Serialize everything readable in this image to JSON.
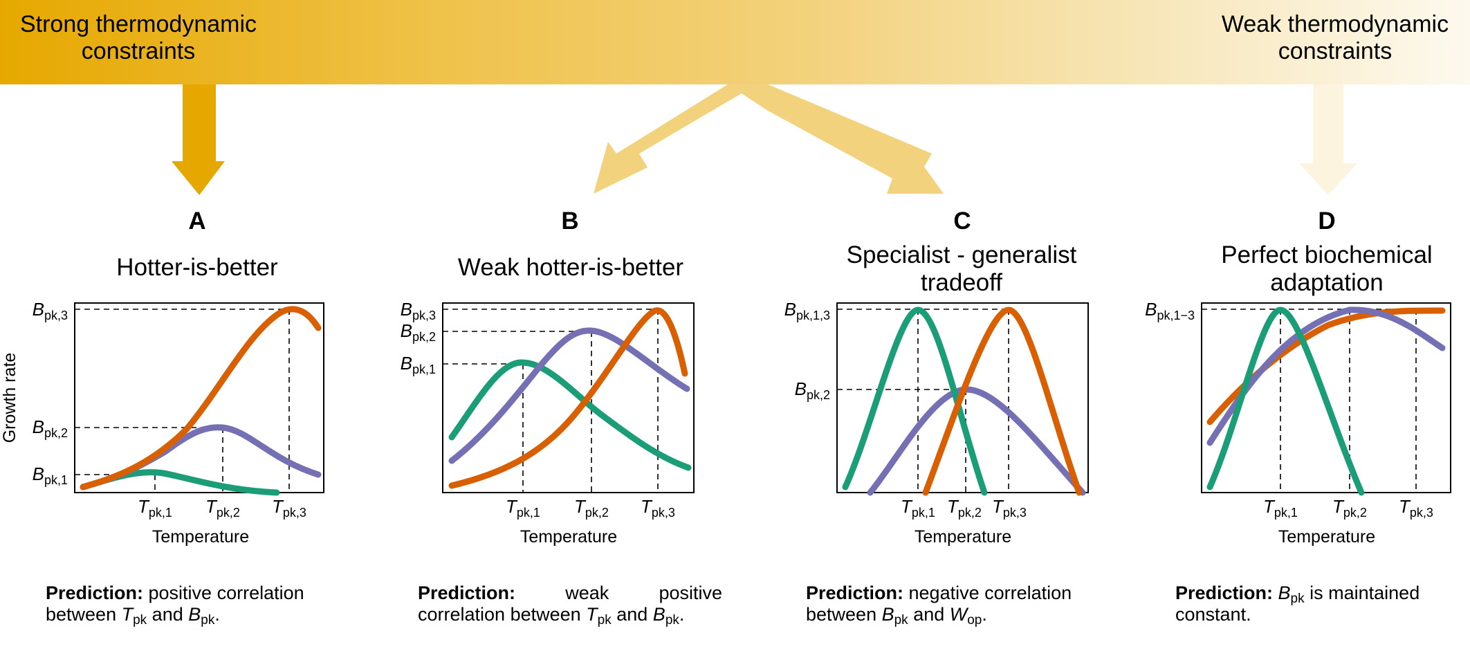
{
  "banner": {
    "left_label": "Strong thermodynamic constraints",
    "right_label": "Weak thermodynamic constraints"
  },
  "colors": {
    "orange": "#d85f02",
    "purple": "#7570b3",
    "green": "#1b9e77",
    "arrow_strong": "#e6a800",
    "arrow_medium": "#f3d27d",
    "arrow_weak": "#fcf4de"
  },
  "panels": [
    {
      "letter": "A",
      "title": "Hotter-is-better",
      "y_axis_label": "Growth rate",
      "x_axis_label": "Temperature",
      "y_ticks": [
        {
          "main": "B",
          "sub": "pk,3"
        },
        {
          "main": "B",
          "sub": "pk,2"
        },
        {
          "main": "B",
          "sub": "pk,1"
        }
      ],
      "x_ticks": [
        {
          "main": "T",
          "sub": "pk,1"
        },
        {
          "main": "T",
          "sub": "pk,2"
        },
        {
          "main": "T",
          "sub": "pk,3"
        }
      ],
      "prediction": {
        "bold": "Prediction:",
        "text1": " positive correlation between ",
        "sym1": "T",
        "sub1": "pk",
        "text2": " and ",
        "sym2": "B",
        "sub2": "pk",
        "text3": "."
      }
    },
    {
      "letter": "B",
      "title": "Weak hotter-is-better",
      "x_axis_label": "Temperature",
      "y_ticks": [
        {
          "main": "B",
          "sub": "pk,3"
        },
        {
          "main": "B",
          "sub": "pk,2"
        },
        {
          "main": "B",
          "sub": "pk,1"
        }
      ],
      "x_ticks": [
        {
          "main": "T",
          "sub": "pk,1"
        },
        {
          "main": "T",
          "sub": "pk,2"
        },
        {
          "main": "T",
          "sub": "pk,3"
        }
      ],
      "prediction": {
        "bold": "Prediction:",
        "text1": " weak positive correlation between ",
        "sym1": "T",
        "sub1": "pk",
        "text2": " and ",
        "sym2": "B",
        "sub2": "pk",
        "text3": "."
      }
    },
    {
      "letter": "C",
      "title": "Specialist - generalist tradeoff",
      "x_axis_label": "Temperature",
      "y_ticks": [
        {
          "main": "B",
          "sub": "pk,1,3"
        },
        {
          "main": "B",
          "sub": "pk,2"
        }
      ],
      "x_ticks": [
        {
          "main": "T",
          "sub": "pk,1"
        },
        {
          "main": "T",
          "sub": "pk,2"
        },
        {
          "main": "T",
          "sub": "pk,3"
        }
      ],
      "prediction": {
        "bold": "Prediction:",
        "text1": " negative correlation between ",
        "sym1": "B",
        "sub1": "pk",
        "text2": " and ",
        "sym2": "W",
        "sub2": "op",
        "text3": "."
      }
    },
    {
      "letter": "D",
      "title": "Perfect biochemical adaptation",
      "x_axis_label": "Temperature",
      "y_ticks": [
        {
          "main": "B",
          "sub": "pk,1−3"
        }
      ],
      "x_ticks": [
        {
          "main": "T",
          "sub": "pk,1"
        },
        {
          "main": "T",
          "sub": "pk,2"
        },
        {
          "main": "T",
          "sub": "pk,3"
        }
      ],
      "prediction": {
        "bold": "Prediction:",
        "sym1": "B",
        "sub1": "pk",
        "text1": " is maintained constant."
      }
    }
  ]
}
